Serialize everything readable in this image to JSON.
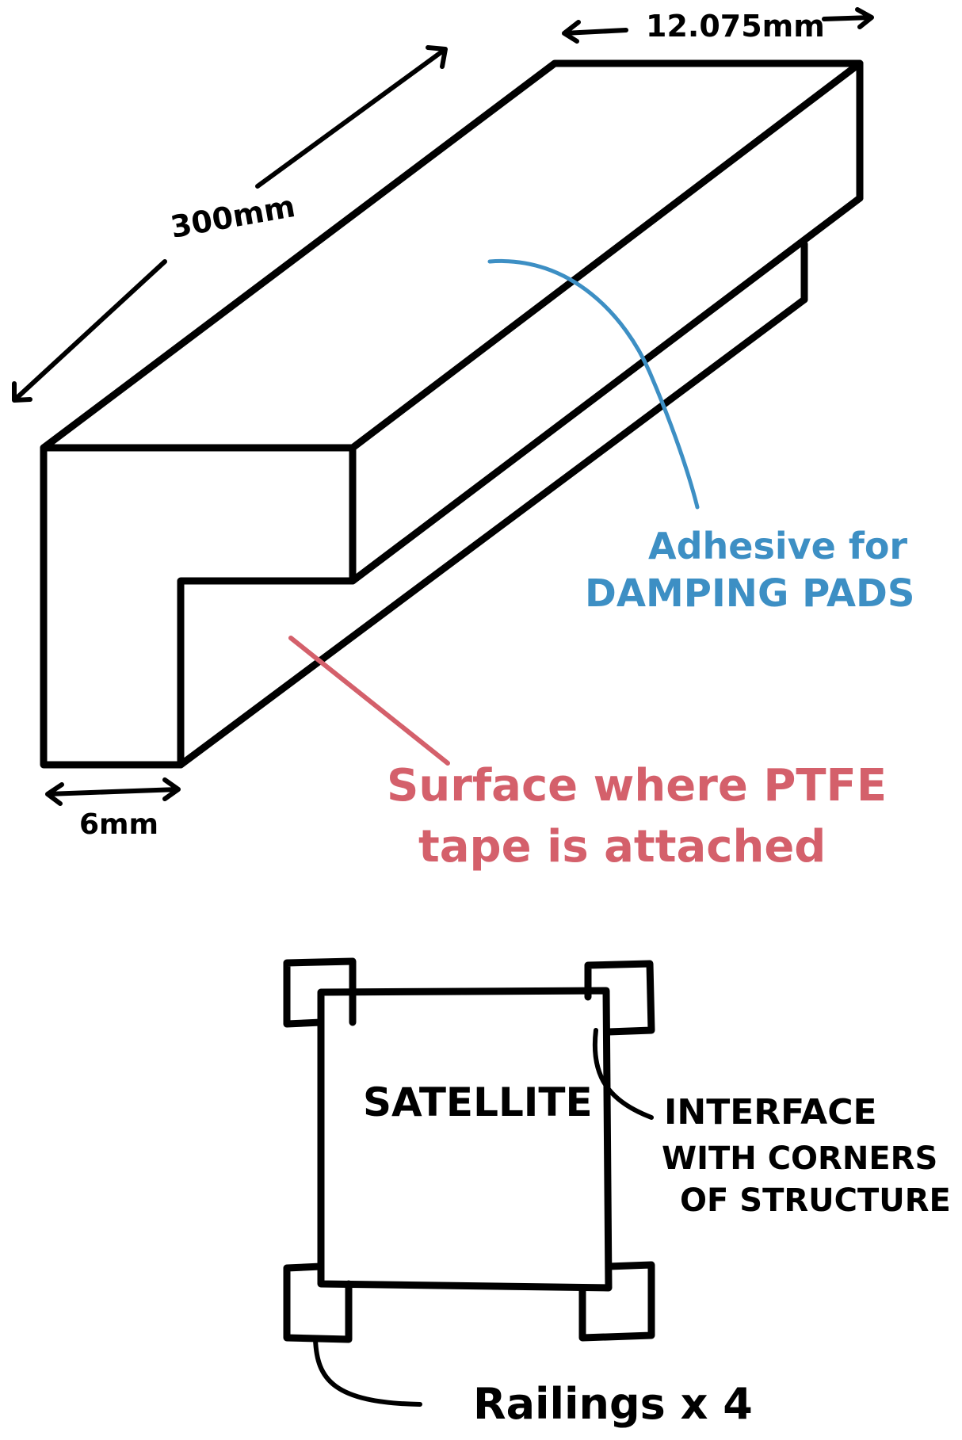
{
  "labels": {
    "width_top": "12.075mm",
    "length": "300mm",
    "width_bottom": "6mm",
    "adhesive_line1": "Adhesive for",
    "adhesive_line2": "DAMPING PADS",
    "ptfe_line1": "Surface where PTFE",
    "ptfe_line2": "tape is attached",
    "satellite": "SATELLITE",
    "interface_line1": "INTERFACE",
    "interface_line2": "WITH CORNERS",
    "interface_line3": "OF STRUCTURE",
    "railings": "Railings x 4"
  },
  "colors": {
    "ink": "#000000",
    "adhesive_annotation": "#3d8fc4",
    "ptfe_annotation": "#d4606b",
    "background": "#ffffff"
  }
}
